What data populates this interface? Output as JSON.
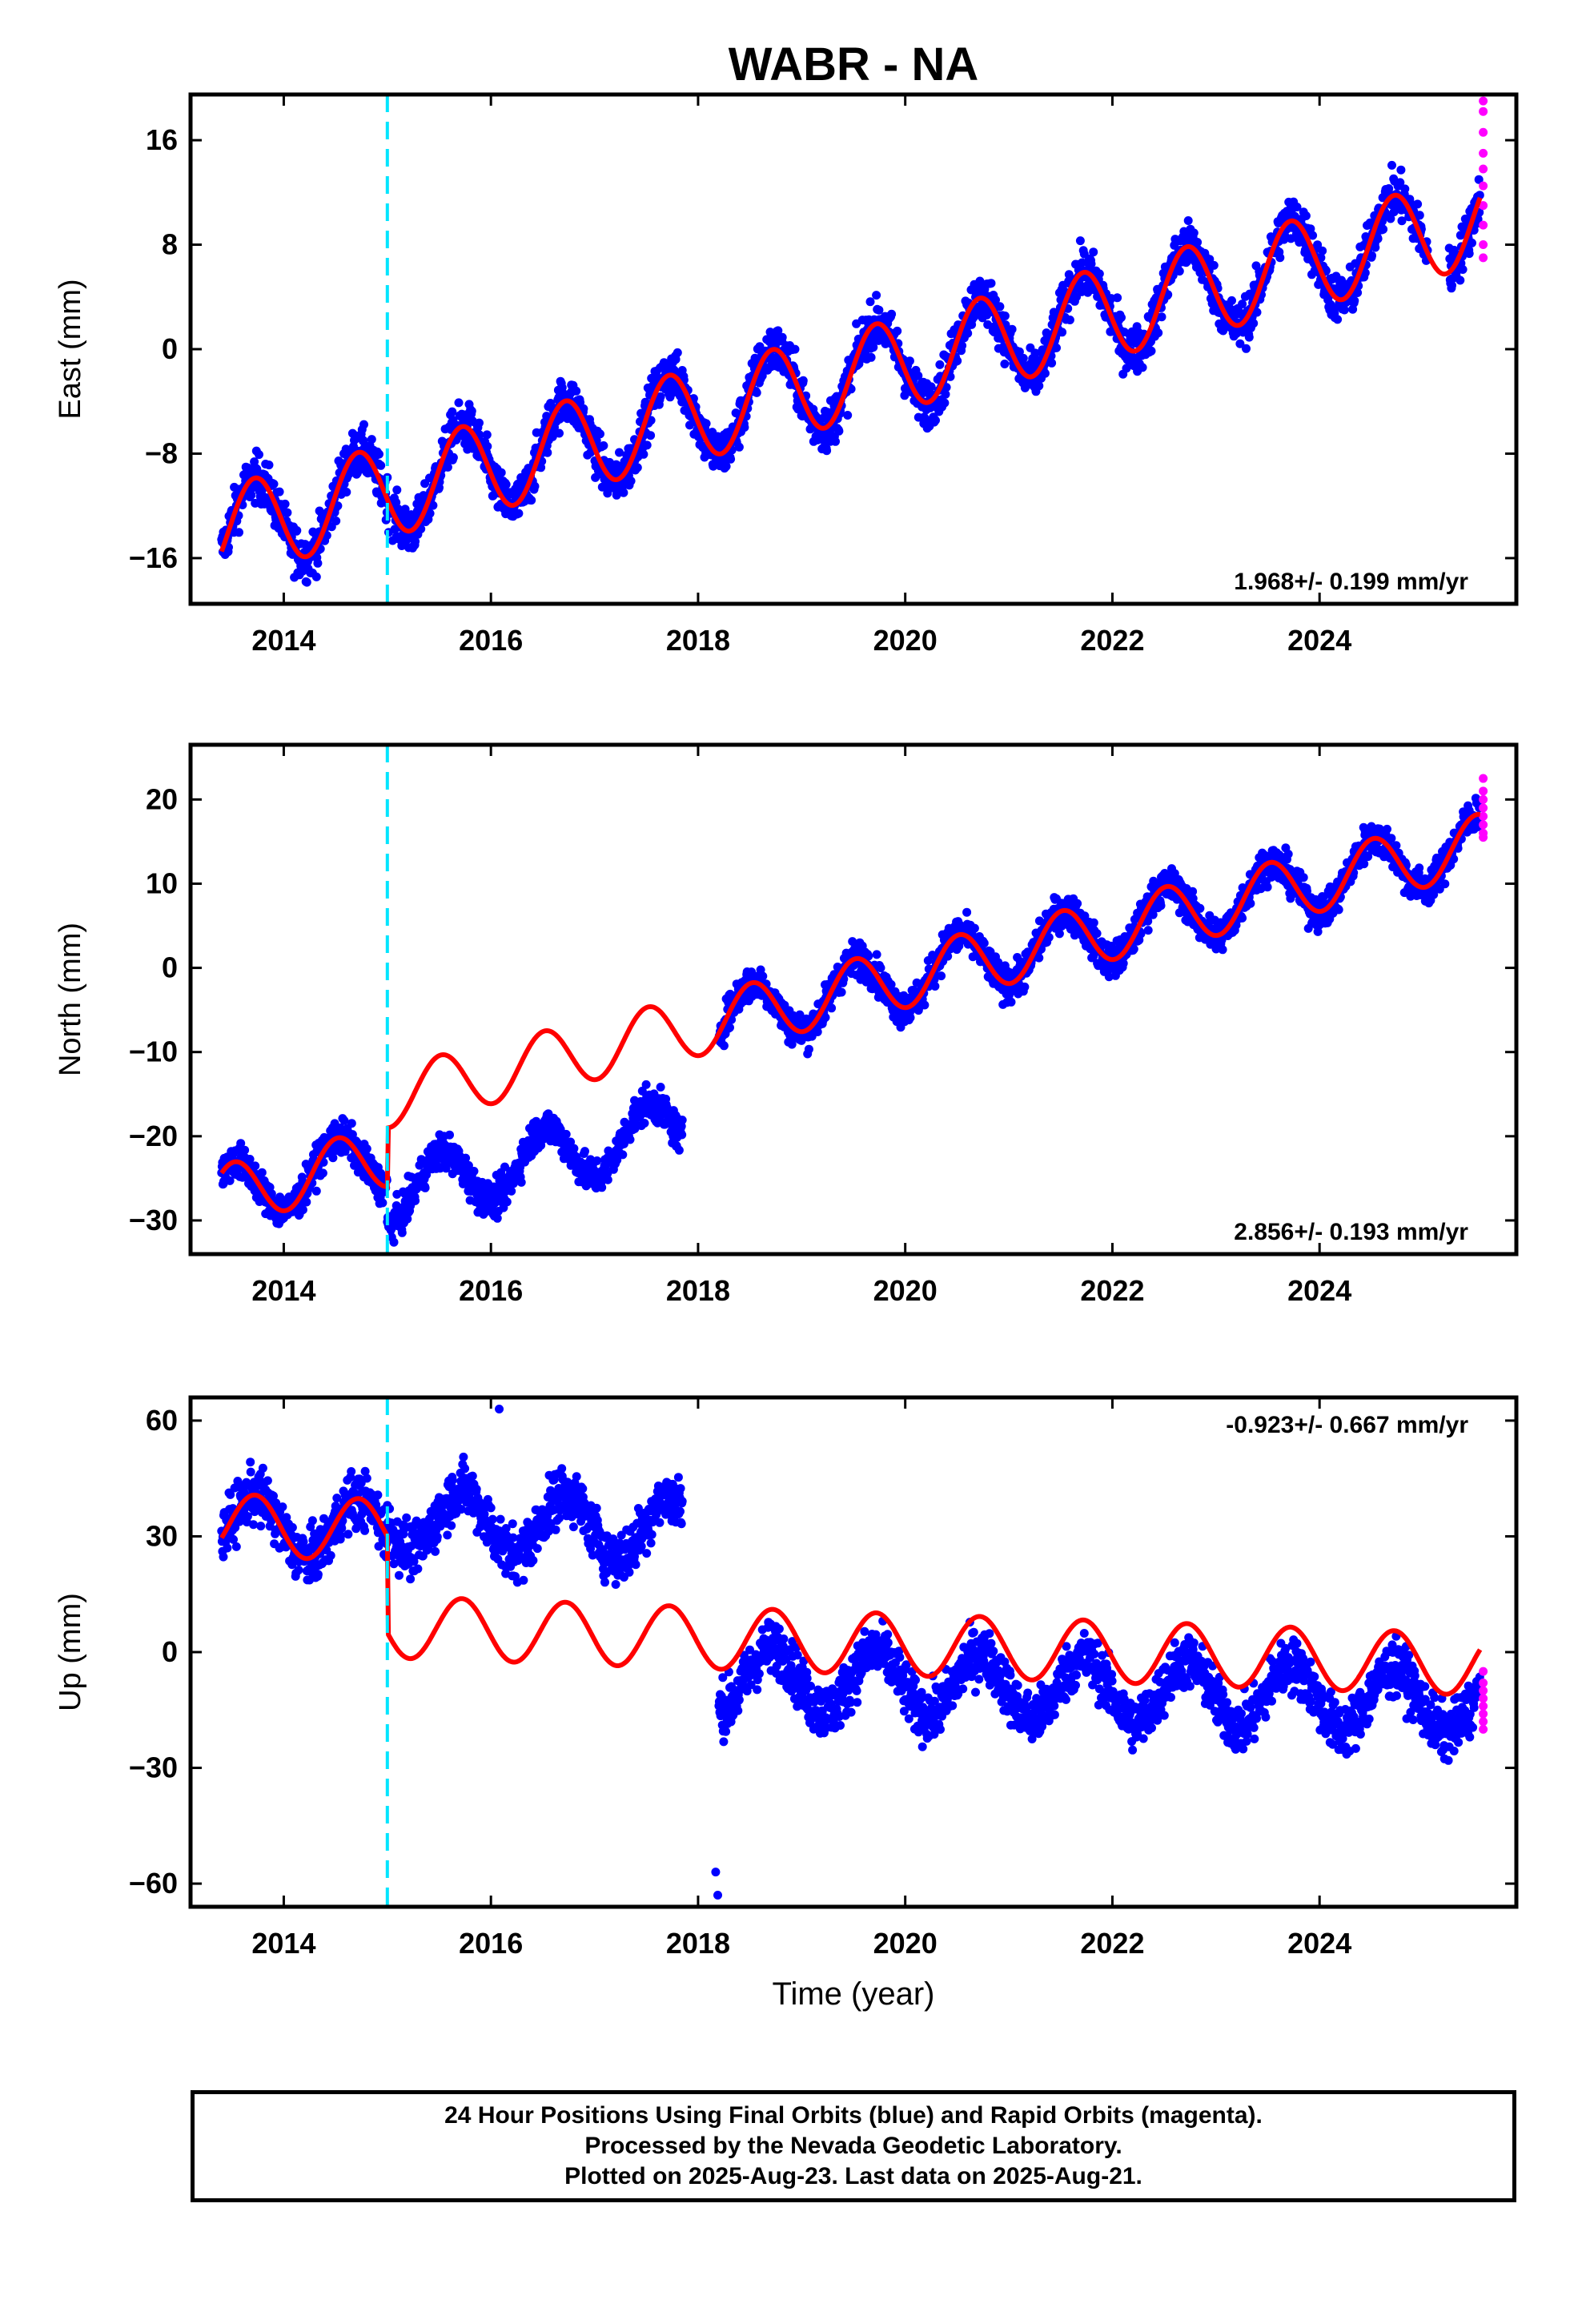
{
  "title": "WABR - NA",
  "footer": {
    "line1": "24 Hour Positions Using Final Orbits (blue) and Rapid Orbits (magenta).",
    "line2": "Processed by the Nevada Geodetic Laboratory.",
    "line3": "Plotted on 2025-Aug-23. Last data on 2025-Aug-21."
  },
  "colors": {
    "final": "#0000ff",
    "rapid": "#ff00ff",
    "model": "#ff0000",
    "event": "#00e5ff"
  },
  "chart_data": [
    {
      "type": "scatter",
      "title": "WABR - NA",
      "ylabel": "East (mm)",
      "xlabel": "",
      "xlim": [
        2013.1,
        2025.9
      ],
      "ylim": [
        -19.5,
        19.5
      ],
      "xticks": [
        2014,
        2016,
        2018,
        2020,
        2022,
        2024
      ],
      "yticks": [
        -16,
        -8,
        0,
        8,
        16
      ],
      "ytick_labels": [
        "−16",
        "−8",
        "0",
        "8",
        "16"
      ],
      "rate_label": "1.968+/- 0.199 mm/yr",
      "event_line_x": 2015.0,
      "gap": [
        2025.05,
        2025.25
      ],
      "noise": 1.3,
      "series": [
        {
          "role": "model",
          "intercept": -14.0,
          "rate": 1.968,
          "ref_year": 2013.4,
          "amplitude": 3.5,
          "phase_year": 2013.72,
          "offsets": []
        },
        {
          "role": "final",
          "x_range": [
            2013.4,
            2025.55
          ],
          "amplitude": 3.5,
          "phase_year": 2013.72,
          "data_shift": 0,
          "shifted_range": null
        },
        {
          "role": "rapid",
          "x": 2025.58,
          "y_values": [
            19,
            18.2,
            16.6,
            15,
            13.8,
            12.5,
            11,
            9.5,
            8,
            7
          ]
        }
      ]
    },
    {
      "type": "scatter",
      "title": "",
      "ylabel": "North (mm)",
      "xlabel": "",
      "xlim": [
        2013.1,
        2025.9
      ],
      "ylim": [
        -34,
        26.5
      ],
      "xticks": [
        2014,
        2016,
        2018,
        2020,
        2022,
        2024
      ],
      "yticks": [
        -30,
        -20,
        -10,
        0,
        10,
        20
      ],
      "ytick_labels": [
        "−30",
        "−20",
        "−10",
        "0",
        "10",
        "20"
      ],
      "rate_label": "2.856+/- 0.193 mm/yr",
      "event_line_x": 2015.0,
      "gap": [
        2017.85,
        2018.2
      ],
      "noise": 1.5,
      "series": [
        {
          "role": "model",
          "intercept": -27.0,
          "rate": 2.856,
          "ref_year": 2013.4,
          "amplitude": 3.6,
          "phase_year": 2013.52,
          "offsets": [
            {
              "x": 2015.0,
              "dy": 7.0
            }
          ]
        },
        {
          "role": "final",
          "x_range": [
            2013.4,
            2025.55
          ],
          "amplitude": 3.6,
          "phase_year": 2013.52,
          "data_shift": -11.5,
          "shifted_range": [
            2015.0,
            2018.2
          ]
        },
        {
          "role": "rapid",
          "x": 2025.58,
          "y_values": [
            22.5,
            21,
            20,
            19,
            18,
            17,
            16,
            15.5
          ]
        }
      ]
    },
    {
      "type": "scatter",
      "title": "",
      "ylabel": "Up (mm)",
      "xlabel": "Time (year)",
      "xlim": [
        2013.1,
        2025.9
      ],
      "ylim": [
        -66,
        66
      ],
      "xticks": [
        2014,
        2016,
        2018,
        2020,
        2022,
        2024
      ],
      "yticks": [
        -60,
        -30,
        0,
        30,
        60
      ],
      "ytick_labels": [
        "−60",
        "−30",
        "0",
        "30",
        "60"
      ],
      "rate_label": "-0.923+/- 0.667 mm/yr",
      "event_line_x": 2015.0,
      "gap": [
        2017.85,
        2018.2
      ],
      "noise": 5.0,
      "outliers": [
        {
          "x": 2018.17,
          "y": -57
        },
        {
          "x": 2018.19,
          "y": -63
        },
        {
          "x": 2016.08,
          "y": 63
        }
      ],
      "series": [
        {
          "role": "model",
          "intercept": 33.0,
          "rate": -0.923,
          "ref_year": 2013.4,
          "amplitude": 8.0,
          "phase_year": 2013.72,
          "offsets": [
            {
              "x": 2015.0,
              "dy": -25.0
            }
          ]
        },
        {
          "role": "final",
          "x_range": [
            2013.4,
            2025.55
          ],
          "amplitude": 8.0,
          "phase_year": 2013.72,
          "data_shift": 28.0,
          "shifted_range": [
            2015.0,
            2018.2
          ],
          "late_shift": -10.0,
          "late_from": 2018.2
        },
        {
          "role": "rapid",
          "x": 2025.58,
          "y_values": [
            -5,
            -8,
            -10,
            -12,
            -14,
            -16,
            -18,
            -20
          ]
        }
      ]
    }
  ]
}
